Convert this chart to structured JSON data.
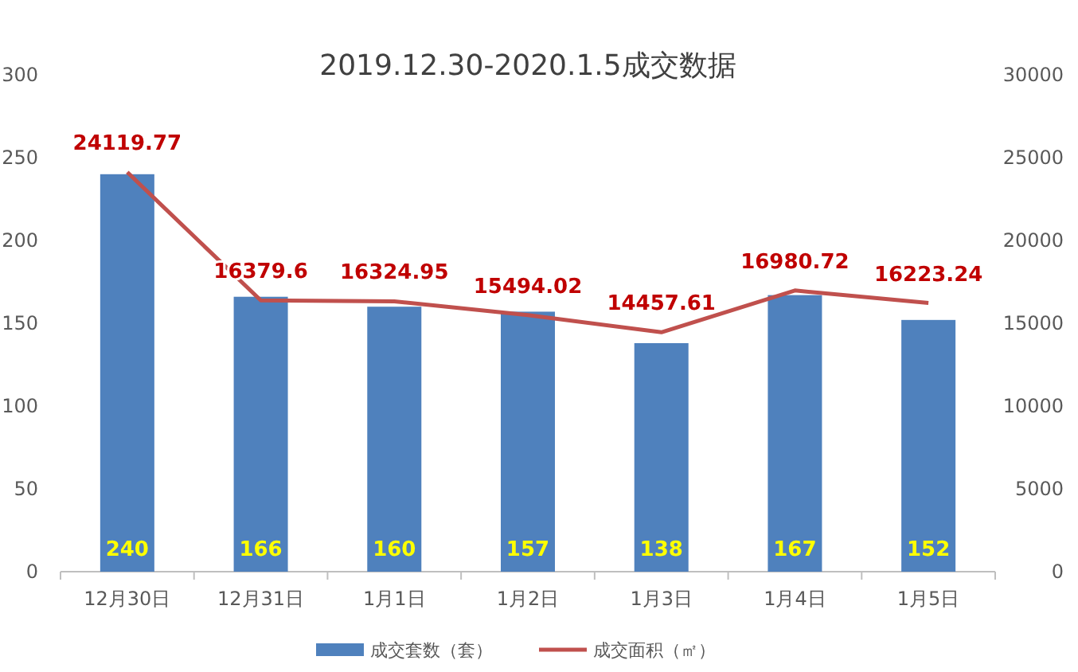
{
  "chart_data": {
    "type": "bar",
    "title": "2019.12.30-2020.1.5成交数据",
    "categories": [
      "12月30日",
      "12月31日",
      "1月1日",
      "1月2日",
      "1月3日",
      "1月4日",
      "1月5日"
    ],
    "series": [
      {
        "name": "成交套数（套）",
        "color": "#4f81bd",
        "values": [
          240,
          166,
          160,
          157,
          138,
          167,
          152
        ]
      },
      {
        "name": "成交面积（㎡）",
        "type": "line",
        "axis": "y2",
        "color": "#c0504d",
        "values": [
          24119.77,
          16379.6,
          16324.95,
          15494.02,
          14457.61,
          16980.72,
          16223.24
        ]
      }
    ],
    "ylim": [
      0,
      300
    ],
    "yticks": [
      0,
      50,
      100,
      150,
      200,
      250,
      300
    ],
    "y2lim": [
      0,
      30000
    ],
    "y2ticks": [
      0,
      5000,
      10000,
      15000,
      20000,
      25000,
      30000
    ],
    "data_labels": true,
    "legend": "bottom",
    "marker": "none"
  }
}
